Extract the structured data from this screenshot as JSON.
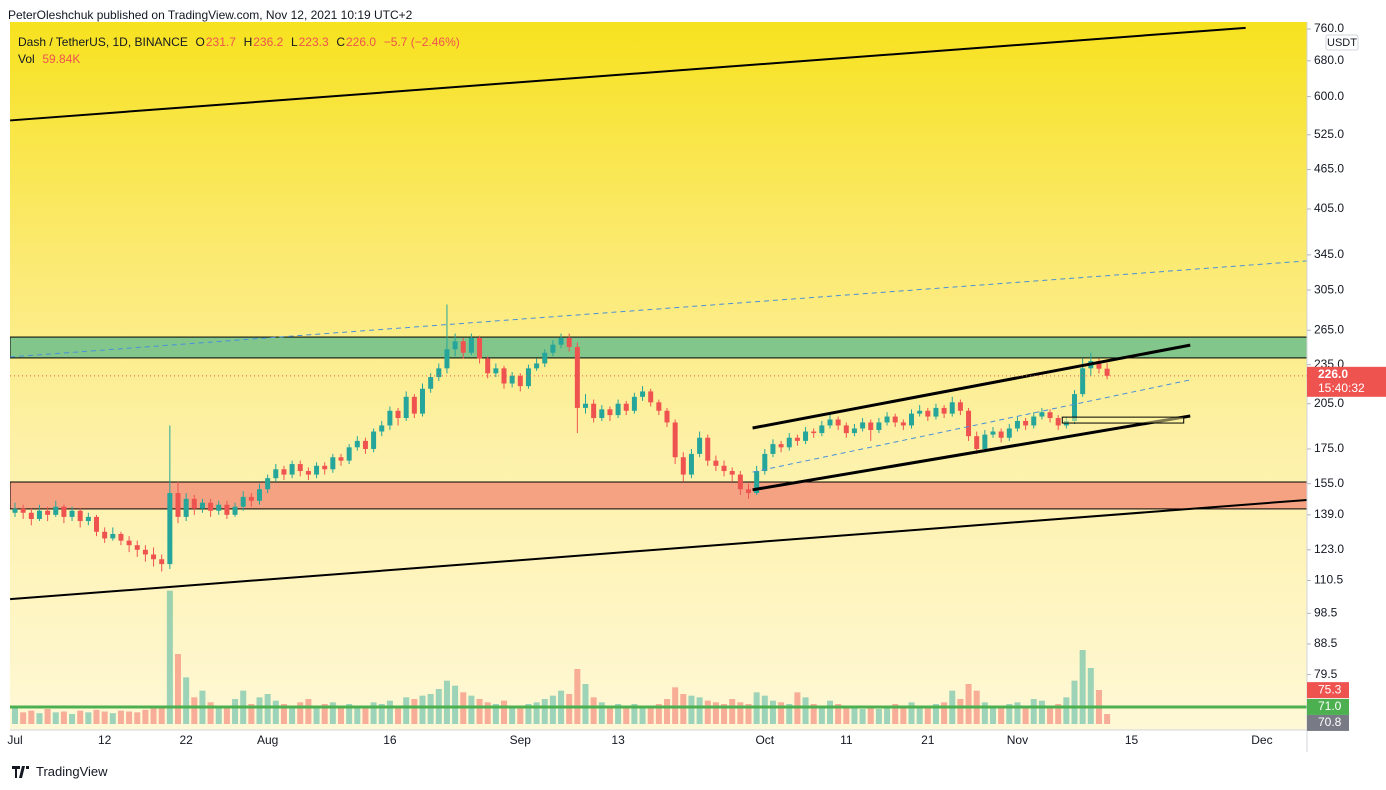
{
  "publish_note": "PeterOleshchuk published on TradingView.com, Nov 12, 2021 10:19 UTC+2",
  "brand": "TradingView",
  "chart_data": {
    "type": "candlestick",
    "symbol": "Dash / TetherUS, 1D, BINANCE",
    "ohlc_letters": [
      "O",
      "H",
      "L",
      "C"
    ],
    "ohlc_labels": [
      "231.7",
      "236.2",
      "223.3",
      "226.0"
    ],
    "change_label": "−5.7 (−2.46%)",
    "volume_title": "Vol",
    "volume_label": "59.84K",
    "countdown": "15:40:32",
    "y_unit": "USDT",
    "log_scale": true,
    "grid": false,
    "up_color": "#26a69a",
    "down_color": "#ef5350",
    "ylim": [
      65.5,
      778.8
    ],
    "yticks": [
      {
        "value": 760,
        "label": "760.0"
      },
      {
        "value": 680,
        "label": "680.0"
      },
      {
        "value": 600,
        "label": "600.0"
      },
      {
        "value": 525,
        "label": "525.0"
      },
      {
        "value": 465,
        "label": "465.0"
      },
      {
        "value": 405,
        "label": "405.0"
      },
      {
        "value": 345,
        "label": "345.0"
      },
      {
        "value": 305,
        "label": "305.0"
      },
      {
        "value": 265,
        "label": "265.0"
      },
      {
        "value": 235,
        "label": "235.0"
      },
      {
        "value": 205,
        "label": "205.0"
      },
      {
        "value": 175,
        "label": "175.0"
      },
      {
        "value": 155,
        "label": "155.0"
      },
      {
        "value": 139,
        "label": "139.0"
      },
      {
        "value": 123,
        "label": "123.0"
      },
      110.5,
      98.5,
      88.5,
      79.5
    ],
    "price_markers": [
      {
        "value": 75.3,
        "label": "75.3",
        "color": "#ef5350"
      },
      {
        "value": 71.0,
        "label": "71.0",
        "color": "#4caf50"
      },
      {
        "value": 70.8,
        "label": "70.8",
        "color": "#787b86"
      }
    ],
    "categories": [
      "Jul",
      null,
      null,
      null,
      null,
      null,
      null,
      null,
      null,
      null,
      null,
      "12",
      null,
      null,
      null,
      null,
      null,
      null,
      null,
      null,
      null,
      "22",
      null,
      null,
      null,
      null,
      null,
      null,
      null,
      null,
      null,
      "Aug",
      null,
      null,
      null,
      null,
      null,
      null,
      null,
      null,
      null,
      null,
      null,
      null,
      null,
      null,
      "16",
      null,
      null,
      null,
      null,
      null,
      null,
      null,
      null,
      null,
      null,
      null,
      null,
      null,
      null,
      null,
      "Sep",
      null,
      null,
      null,
      null,
      null,
      null,
      null,
      null,
      null,
      null,
      null,
      "13",
      null,
      null,
      null,
      null,
      null,
      null,
      null,
      null,
      null,
      null,
      null,
      null,
      null,
      null,
      null,
      null,
      null,
      "Oct",
      null,
      null,
      null,
      null,
      null,
      null,
      null,
      null,
      null,
      "11",
      null,
      null,
      null,
      null,
      null,
      null,
      null,
      null,
      null,
      "21",
      null,
      null,
      null,
      null,
      null,
      null,
      null,
      null,
      null,
      null,
      "Nov",
      null,
      null,
      null,
      null,
      null,
      null,
      null,
      null,
      null,
      null,
      null,
      null,
      null,
      "15",
      null,
      null,
      null,
      null,
      null,
      null,
      null,
      null,
      null,
      null,
      null,
      null,
      null,
      null,
      null,
      "Dec",
      null,
      null,
      null,
      null,
      null
    ],
    "open": [
      140,
      142,
      140,
      137,
      141,
      139,
      143,
      138,
      141,
      136,
      138,
      131,
      128,
      130,
      127,
      125,
      123,
      121,
      119,
      117,
      150,
      138,
      147,
      142,
      145,
      141,
      144,
      139,
      143,
      148,
      146,
      152,
      158,
      163,
      160,
      166,
      162,
      160,
      165,
      163,
      170,
      168,
      176,
      180,
      175,
      186,
      190,
      200,
      195,
      210,
      198,
      216,
      225,
      232,
      248,
      255,
      245,
      258,
      240,
      228,
      232,
      220,
      226,
      218,
      232,
      236,
      245,
      252,
      258,
      250,
      202,
      205,
      195,
      201,
      197,
      205,
      200,
      210,
      214,
      206,
      200,
      192,
      170,
      160,
      172,
      182,
      168,
      165,
      162,
      160,
      152,
      150,
      162,
      172,
      178,
      176,
      182,
      180,
      186,
      185,
      190,
      194,
      190,
      185,
      188,
      192,
      187,
      192,
      196,
      192,
      190,
      198,
      200,
      196,
      202,
      198,
      206,
      200,
      183,
      175,
      184,
      186,
      182,
      188,
      193,
      190,
      196,
      199,
      195,
      190,
      193,
      212,
      232,
      238,
      231.7,
      null,
      null,
      null,
      null,
      null,
      null,
      null,
      null,
      null,
      null,
      null,
      null,
      null,
      null,
      null,
      null,
      null,
      null,
      null,
      null,
      null,
      null,
      null,
      null
    ],
    "high": [
      145,
      144,
      142,
      144,
      143,
      146,
      144,
      143,
      142,
      140,
      139,
      133,
      133,
      131,
      129,
      127,
      125,
      124,
      121,
      190,
      156,
      150,
      149,
      147,
      147,
      146,
      146,
      145,
      151,
      150,
      155,
      160,
      166,
      165,
      168,
      168,
      164,
      167,
      167,
      172,
      172,
      178,
      183,
      182,
      188,
      193,
      203,
      202,
      214,
      212,
      220,
      228,
      236,
      290,
      262,
      258,
      262,
      260,
      242,
      236,
      234,
      229,
      228,
      235,
      240,
      248,
      256,
      262,
      262,
      254,
      212,
      208,
      204,
      203,
      208,
      207,
      213,
      218,
      216,
      208,
      202,
      194,
      173,
      175,
      186,
      184,
      171,
      168,
      164,
      162,
      155,
      165,
      175,
      181,
      180,
      185,
      184,
      189,
      188,
      193,
      198,
      196,
      192,
      191,
      195,
      194,
      195,
      199,
      198,
      194,
      201,
      204,
      202,
      205,
      204,
      210,
      208,
      202,
      186,
      187,
      189,
      188,
      191,
      196,
      195,
      199,
      202,
      201,
      197,
      196,
      215,
      240,
      245,
      240,
      236.2,
      null,
      null,
      null,
      null,
      null,
      null,
      null,
      null,
      null,
      null,
      null,
      null,
      null,
      null,
      null,
      null,
      null,
      null,
      null,
      null,
      null,
      null,
      null,
      null
    ],
    "low": [
      138,
      137,
      134,
      136,
      136,
      138,
      135,
      136,
      133,
      134,
      129,
      126,
      127,
      125,
      122,
      120,
      118,
      116,
      114,
      115,
      135,
      136,
      139,
      140,
      138,
      139,
      137,
      138,
      141,
      143,
      144,
      150,
      156,
      157,
      158,
      159,
      157,
      158,
      160,
      161,
      165,
      166,
      174,
      172,
      173,
      183,
      187,
      190,
      193,
      195,
      196,
      213,
      222,
      228,
      242,
      240,
      243,
      236,
      224,
      225,
      216,
      217,
      214,
      216,
      230,
      233,
      242,
      249,
      246,
      185,
      198,
      192,
      193,
      193,
      195,
      197,
      198,
      207,
      203,
      197,
      189,
      166,
      156,
      158,
      170,
      165,
      162,
      159,
      156,
      149,
      147,
      149,
      160,
      170,
      173,
      174,
      177,
      178,
      182,
      183,
      188,
      187,
      182,
      183,
      186,
      180,
      185,
      190,
      189,
      187,
      188,
      196,
      193,
      194,
      195,
      196,
      197,
      180,
      172,
      173,
      182,
      179,
      180,
      186,
      187,
      188,
      194,
      192,
      187,
      188,
      191,
      210,
      226,
      228,
      223.3,
      null,
      null,
      null,
      null,
      null,
      null,
      null,
      null,
      null,
      null,
      null,
      null,
      null,
      null,
      null,
      null,
      null,
      null,
      null,
      null,
      null,
      null,
      null,
      null
    ],
    "close": [
      142,
      140,
      137,
      141,
      139,
      143,
      138,
      141,
      136,
      138,
      131,
      128,
      130,
      127,
      125,
      123,
      121,
      119,
      117,
      150,
      138,
      147,
      142,
      145,
      141,
      144,
      139,
      143,
      148,
      146,
      152,
      158,
      163,
      160,
      166,
      162,
      160,
      165,
      163,
      170,
      168,
      176,
      180,
      175,
      186,
      190,
      200,
      195,
      210,
      198,
      216,
      225,
      232,
      248,
      255,
      245,
      258,
      240,
      228,
      232,
      220,
      226,
      218,
      232,
      236,
      245,
      252,
      258,
      250,
      202,
      205,
      195,
      201,
      197,
      205,
      200,
      210,
      214,
      206,
      200,
      192,
      170,
      160,
      172,
      182,
      168,
      165,
      162,
      160,
      152,
      150,
      162,
      172,
      178,
      176,
      182,
      180,
      186,
      185,
      190,
      194,
      190,
      185,
      188,
      192,
      187,
      192,
      196,
      192,
      190,
      198,
      200,
      196,
      202,
      198,
      206,
      200,
      183,
      175,
      184,
      186,
      182,
      188,
      193,
      190,
      196,
      199,
      195,
      190,
      193,
      212,
      232,
      238,
      231.7,
      226.0,
      null,
      null,
      null,
      null,
      null,
      null,
      null,
      null,
      null,
      null,
      null,
      null,
      null,
      null,
      null,
      null,
      null,
      null,
      null,
      null,
      null,
      null,
      null,
      null
    ],
    "volume": [
      95,
      70,
      80,
      65,
      90,
      70,
      75,
      60,
      80,
      70,
      85,
      75,
      65,
      80,
      75,
      70,
      85,
      95,
      110,
      800,
      420,
      280,
      160,
      200,
      130,
      110,
      100,
      150,
      200,
      120,
      160,
      180,
      140,
      120,
      110,
      130,
      150,
      100,
      120,
      130,
      110,
      120,
      110,
      100,
      130,
      120,
      140,
      110,
      160,
      150,
      170,
      180,
      210,
      260,
      230,
      190,
      170,
      150,
      130,
      120,
      140,
      110,
      100,
      120,
      130,
      150,
      170,
      200,
      180,
      330,
      240,
      160,
      130,
      110,
      120,
      100,
      120,
      110,
      100,
      120,
      150,
      220,
      180,
      170,
      160,
      140,
      130,
      120,
      150,
      130,
      120,
      190,
      170,
      140,
      130,
      120,
      190,
      160,
      120,
      100,
      140,
      120,
      110,
      100,
      90,
      100,
      90,
      110,
      120,
      100,
      130,
      110,
      100,
      120,
      130,
      200,
      150,
      240,
      200,
      130,
      110,
      100,
      120,
      130,
      110,
      150,
      140,
      110,
      120,
      160,
      260,
      444,
      336,
      204,
      59.84,
      null,
      null,
      null,
      null,
      null,
      null,
      null,
      null,
      null,
      null,
      null,
      null,
      null,
      null,
      null,
      null,
      null,
      null,
      null,
      null,
      null,
      null,
      null,
      null
    ],
    "zones": [
      {
        "y": [
          240.6,
          258.8
        ],
        "color": "#82c68c"
      },
      {
        "y": [
          141.9,
          155.9
        ],
        "color": "#f5a283"
      }
    ],
    "drawings": [
      {
        "type": "line",
        "x": [
          -0.6,
          151
        ],
        "y": [
          552,
          763
        ],
        "color": "#000000",
        "width": 2
      },
      {
        "type": "line",
        "x": [
          -0.6,
          158.5
        ],
        "y": [
          103.5,
          146.4
        ],
        "color": "#000000",
        "width": 2
      },
      {
        "type": "line",
        "x": [
          90.5,
          144.2
        ],
        "y": [
          188.3,
          251.6
        ],
        "color": "#000000",
        "width": 3
      },
      {
        "type": "line",
        "x": [
          90.5,
          144.2
        ],
        "y": [
          151.7,
          196.4
        ],
        "color": "#000000",
        "width": 3
      },
      {
        "type": "dashed",
        "x": [
          -0.6,
          158.5
        ],
        "y": [
          241.4,
          337.8
        ],
        "color": "#4a90d9",
        "width": 1
      },
      {
        "type": "dashed",
        "x": [
          90.5,
          144.2
        ],
        "y": [
          161.4,
          222.8
        ],
        "color": "#4a90d9",
        "width": 1
      },
      {
        "type": "rect",
        "x": [
          128.5,
          143.4
        ],
        "y": [
          191.6,
          195.6
        ],
        "color": "#000000",
        "width": 1
      }
    ]
  }
}
